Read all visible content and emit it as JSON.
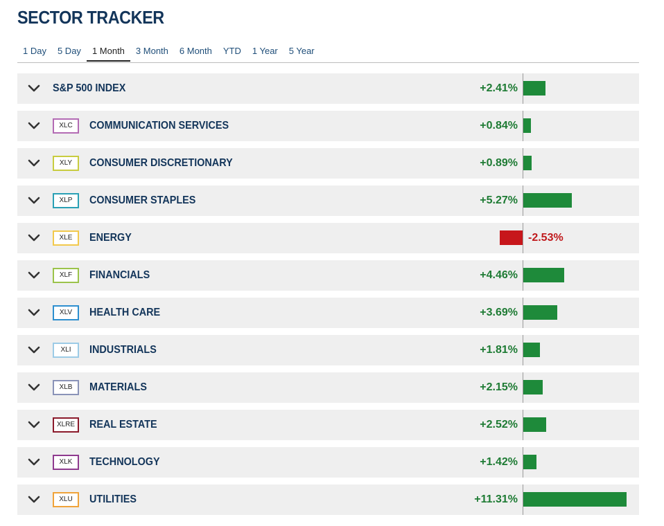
{
  "title": "SECTOR TRACKER",
  "tabs": [
    "1 Day",
    "5 Day",
    "1 Month",
    "3 Month",
    "6 Month",
    "YTD",
    "1 Year",
    "5 Year"
  ],
  "active_tab": "1 Month",
  "chart_data": {
    "type": "bar",
    "orientation": "horizontal",
    "unit": "%",
    "categories": [
      "S&P 500 INDEX",
      "COMMUNICATION SERVICES",
      "CONSUMER DISCRETIONARY",
      "CONSUMER STAPLES",
      "ENERGY",
      "FINANCIALS",
      "HEALTH CARE",
      "INDUSTRIALS",
      "MATERIALS",
      "REAL ESTATE",
      "TECHNOLOGY",
      "UTILITIES"
    ],
    "tickers": [
      "",
      "XLC",
      "XLY",
      "XLP",
      "XLE",
      "XLF",
      "XLV",
      "XLI",
      "XLB",
      "XLRE",
      "XLK",
      "XLU"
    ],
    "ticker_colors": [
      "",
      "#b36bb4",
      "#c8cc3f",
      "#2aa0b5",
      "#f2c94c",
      "#9bc34a",
      "#2d8fcf",
      "#9ccbe6",
      "#8a93b8",
      "#8b1a2b",
      "#8e3a8e",
      "#f0a33a"
    ],
    "values": [
      2.41,
      0.84,
      0.89,
      5.27,
      -2.53,
      4.46,
      3.69,
      1.81,
      2.15,
      2.52,
      1.42,
      11.31
    ],
    "labels": [
      "+2.41%",
      "+0.84%",
      "+0.89%",
      "+5.27%",
      "-2.53%",
      "+4.46%",
      "+3.69%",
      "+1.81%",
      "+2.15%",
      "+2.52%",
      "+1.42%",
      "+11.31%"
    ],
    "positive_color": "#1e8a3a",
    "negative_color": "#c7161b"
  }
}
